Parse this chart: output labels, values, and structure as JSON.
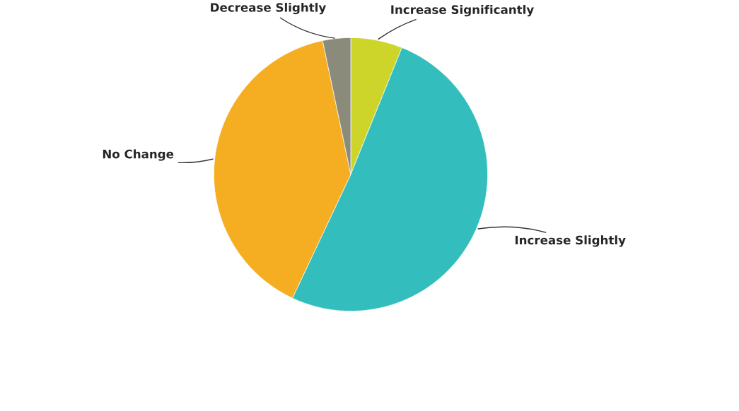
{
  "chart_data": {
    "type": "pie",
    "categories": [
      "Increase Significantly",
      "Increase Slightly",
      "No Change",
      "Decrease Slightly"
    ],
    "values": [
      6.1,
      50.9,
      39.7,
      3.3
    ],
    "colors": [
      "#cdd52a",
      "#33bdbd",
      "#f5ad21",
      "#8a8b7a"
    ]
  }
}
